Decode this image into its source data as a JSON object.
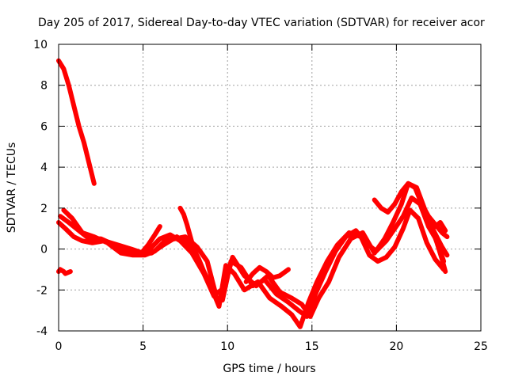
{
  "chart_data": {
    "type": "scatter",
    "title": "Day 205 of 2017, Sidereal Day-to-day VTEC variation (SDTVAR) for receiver acor",
    "xlabel": "GPS time / hours",
    "ylabel": "SDTVAR / TECUs",
    "xlim": [
      0,
      25
    ],
    "ylim": [
      -4,
      10
    ],
    "xticks": [
      0,
      5,
      10,
      15,
      20,
      25
    ],
    "yticks": [
      -4,
      -2,
      0,
      2,
      4,
      6,
      8,
      10
    ],
    "grid": true,
    "marker_color": "#ff0000",
    "series": [
      {
        "name": "track-1",
        "x": [
          0.0,
          0.3,
          0.6,
          0.9,
          1.2,
          1.5,
          1.8,
          2.1
        ],
        "y": [
          9.2,
          8.8,
          8.0,
          7.0,
          6.0,
          5.2,
          4.2,
          3.2
        ]
      },
      {
        "name": "track-2",
        "x": [
          0.0,
          0.1,
          0.3,
          0.4,
          0.7
        ],
        "y": [
          -1.1,
          -1.0,
          -1.1,
          -1.2,
          -1.1
        ]
      },
      {
        "name": "track-3",
        "x": [
          0.0,
          0.4,
          0.9,
          1.4,
          2.0,
          2.7,
          3.5,
          4.3,
          5.0,
          5.5,
          6.2,
          7.0,
          7.7,
          8.4,
          9.0,
          9.5,
          9.9,
          10.4,
          11.0,
          11.8,
          12.5,
          13.2,
          13.8,
          14.3,
          14.8,
          15.3,
          15.9,
          16.5,
          17.2,
          17.9,
          18.4,
          18.9,
          19.4,
          19.9,
          20.4,
          20.8,
          21.3,
          21.8,
          22.3,
          22.8
        ],
        "y": [
          1.3,
          1.0,
          0.6,
          0.4,
          0.3,
          0.4,
          0.2,
          0.0,
          -0.2,
          -0.2,
          0.2,
          0.6,
          0.2,
          -0.8,
          -1.8,
          -2.8,
          -0.8,
          -1.2,
          -2.0,
          -1.6,
          -2.4,
          -2.8,
          -3.2,
          -3.8,
          -2.6,
          -1.6,
          -0.6,
          0.2,
          0.8,
          0.6,
          -0.3,
          -0.6,
          -0.4,
          0.1,
          1.0,
          1.9,
          1.5,
          0.3,
          -0.5,
          -1.0
        ]
      },
      {
        "name": "track-4",
        "x": [
          0.1,
          0.6,
          1.2,
          1.8,
          2.5,
          3.3,
          4.0,
          4.8,
          5.4,
          6.0,
          6.6,
          7.2,
          7.9,
          8.6,
          9.2,
          9.7,
          10.2,
          10.8,
          11.5,
          12.2,
          12.9,
          13.6,
          14.2,
          14.7,
          15.2,
          15.8,
          16.4,
          17.0,
          17.6,
          18.2,
          18.8,
          19.4,
          19.9,
          20.4,
          20.9,
          21.4,
          21.9,
          22.4,
          22.8
        ],
        "y": [
          1.6,
          1.3,
          0.9,
          0.5,
          0.5,
          0.2,
          -0.1,
          -0.2,
          0.0,
          0.5,
          0.7,
          0.4,
          -0.2,
          -1.2,
          -2.3,
          -2.5,
          -0.6,
          -0.9,
          -1.8,
          -1.5,
          -2.2,
          -2.6,
          -3.0,
          -3.3,
          -2.2,
          -1.1,
          -0.1,
          0.6,
          0.9,
          0.3,
          -0.1,
          0.4,
          1.0,
          1.6,
          2.5,
          2.2,
          1.1,
          0.4,
          -0.6
        ]
      },
      {
        "name": "track-5",
        "x": [
          0.3,
          0.8,
          1.4,
          2.1,
          2.9,
          3.7,
          4.4,
          5.1,
          5.7,
          6.3,
          6.9,
          7.5,
          8.2,
          8.8,
          9.3,
          9.8,
          10.3,
          11.0,
          11.7,
          12.4,
          13.1,
          13.8,
          14.4,
          14.9,
          15.4,
          16.0,
          16.6,
          17.3,
          18.0,
          18.7,
          19.3,
          19.8,
          20.3,
          20.7,
          21.2,
          21.7,
          22.2,
          22.7,
          23.0
        ],
        "y": [
          1.9,
          1.5,
          0.8,
          0.6,
          0.3,
          -0.2,
          -0.3,
          -0.3,
          -0.1,
          0.4,
          0.5,
          0.6,
          0.1,
          -0.6,
          -2.2,
          -1.9,
          -0.4,
          -1.3,
          -1.8,
          -1.3,
          -2.1,
          -2.4,
          -2.7,
          -3.3,
          -2.4,
          -1.6,
          -0.4,
          0.5,
          0.8,
          -0.2,
          0.5,
          1.3,
          2.2,
          3.2,
          3.0,
          1.9,
          0.9,
          0.1,
          -0.3
        ]
      },
      {
        "name": "track-6",
        "x": [
          4.9,
          5.3,
          5.7,
          6.0
        ],
        "y": [
          -0.2,
          0.2,
          0.7,
          1.1
        ]
      },
      {
        "name": "track-7",
        "x": [
          7.2,
          7.4,
          7.6,
          7.8,
          8.0,
          8.3,
          8.6,
          8.9,
          9.1
        ],
        "y": [
          2.0,
          1.7,
          1.2,
          0.6,
          0.0,
          -0.5,
          -1.1,
          -1.6,
          -1.8
        ]
      },
      {
        "name": "track-8",
        "x": [
          11.1,
          11.5,
          11.9,
          12.3,
          12.7,
          13.1,
          13.6
        ],
        "y": [
          -1.6,
          -1.2,
          -0.9,
          -1.1,
          -1.4,
          -1.3,
          -1.0
        ]
      },
      {
        "name": "track-9",
        "x": [
          18.7,
          19.1,
          19.5,
          19.9,
          20.3,
          20.7,
          21.1,
          21.5,
          21.9,
          22.3,
          22.7,
          23.0
        ],
        "y": [
          2.4,
          2.0,
          1.8,
          2.2,
          2.8,
          3.2,
          3.0,
          2.2,
          1.6,
          1.2,
          0.8,
          0.6
        ]
      },
      {
        "name": "track-10",
        "x": [
          21.8,
          22.1,
          22.4,
          22.7,
          22.9
        ],
        "y": [
          1.4,
          1.0,
          0.3,
          -0.5,
          -1.1
        ]
      },
      {
        "name": "track-11",
        "x": [
          22.3,
          22.6,
          22.9
        ],
        "y": [
          1.1,
          1.3,
          0.9
        ]
      }
    ]
  }
}
